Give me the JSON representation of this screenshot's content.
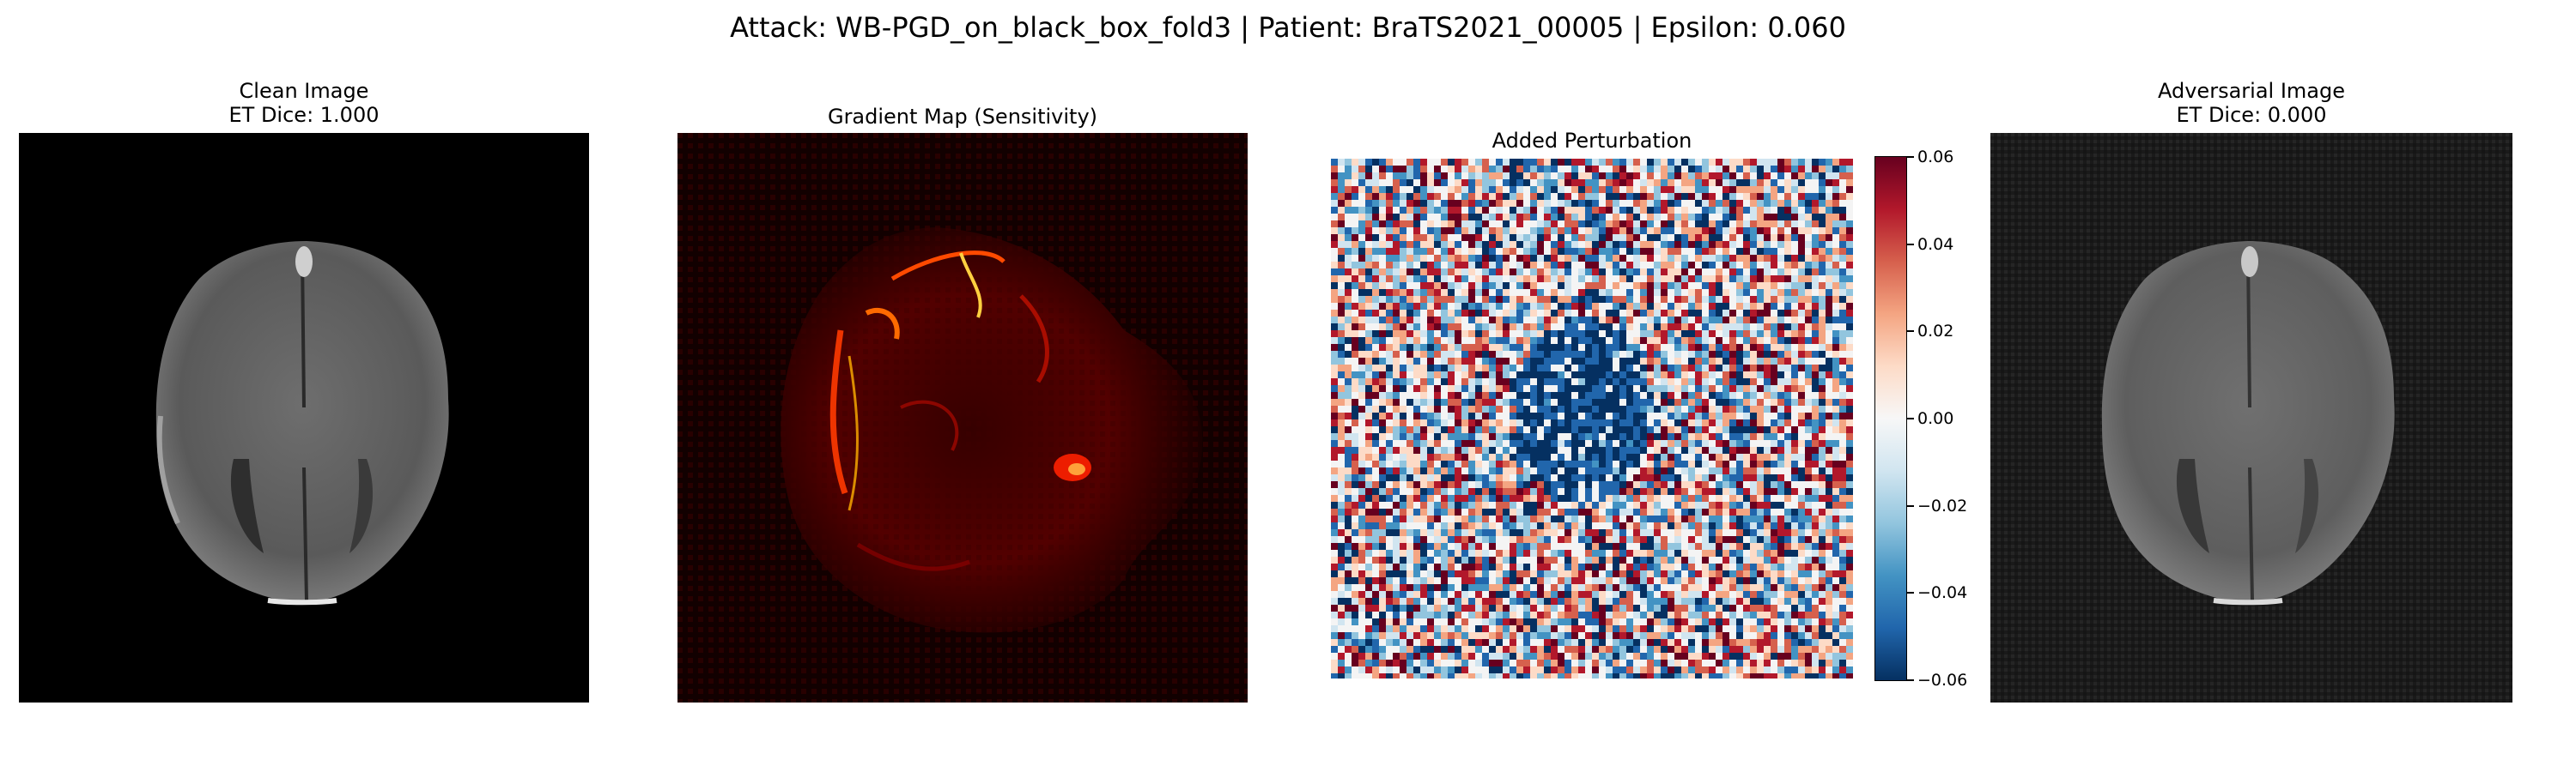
{
  "suptitle": "Attack: WB-PGD_on_black_box_fold3 | Patient: BraTS2021_00005 | Epsilon: 0.060",
  "panels": {
    "clean": {
      "title_line1": "Clean Image",
      "title_line2": "ET Dice: 1.000",
      "colormap": "gray"
    },
    "gradient": {
      "title": "Gradient Map (Sensitivity)",
      "colormap": "hot"
    },
    "perturbation": {
      "title": "Added Perturbation",
      "colormap": "RdBu_r"
    },
    "adversarial": {
      "title_line1": "Adversarial Image",
      "title_line2": "ET Dice: 0.000",
      "colormap": "gray"
    }
  },
  "colorbar": {
    "min": -0.06,
    "max": 0.06,
    "ticks": [
      "0.06",
      "0.04",
      "0.02",
      "0.00",
      "−0.02",
      "−0.04",
      "−0.06"
    ],
    "colors": [
      "#67001f",
      "#b2182b",
      "#d6604d",
      "#f4a582",
      "#fddbc7",
      "#f7f7f7",
      "#d1e5f0",
      "#92c5de",
      "#4393c3",
      "#2166ac",
      "#053061"
    ]
  }
}
